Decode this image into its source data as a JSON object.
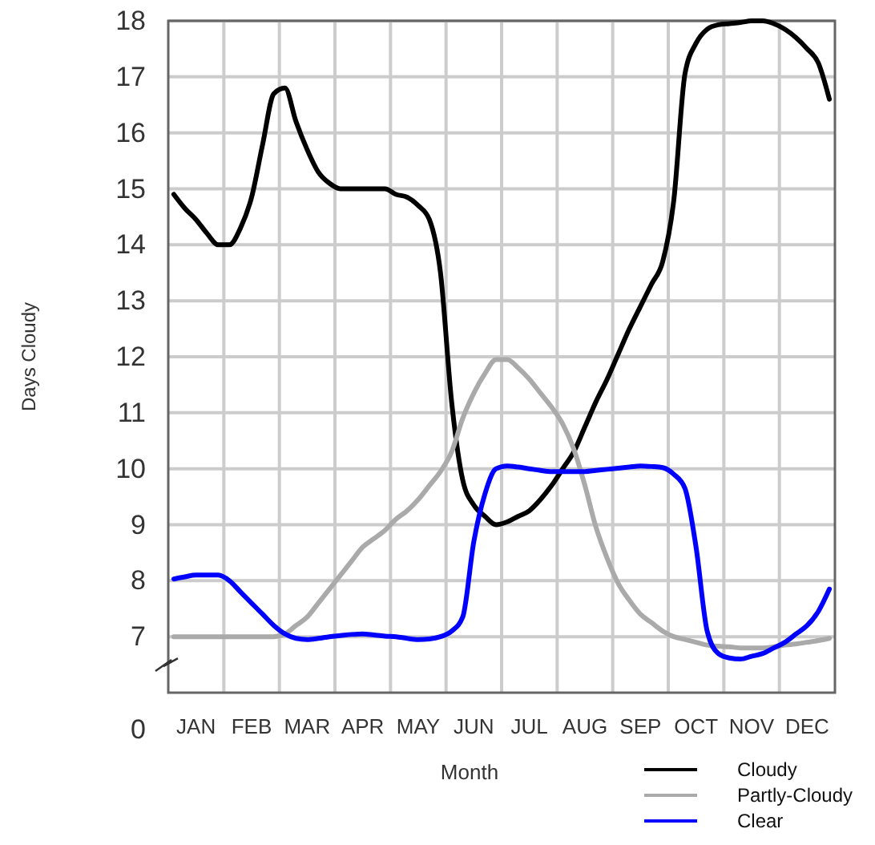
{
  "chart_data": {
    "type": "line",
    "xlabel": "Month",
    "ylabel": "Days Cloudy",
    "categories": [
      null,
      null,
      "JAN",
      null,
      null,
      null,
      null,
      "FEB",
      null,
      null,
      null,
      null,
      "MAR",
      null,
      null,
      null,
      null,
      "APR",
      null,
      null,
      null,
      null,
      "MAY",
      null,
      null,
      null,
      null,
      "JUN",
      null,
      null,
      null,
      null,
      "JUL",
      null,
      null,
      null,
      null,
      "AUG",
      null,
      null,
      null,
      null,
      "SEP",
      null,
      null,
      null,
      null,
      "OCT",
      null,
      null,
      null,
      null,
      "NOV",
      null,
      null,
      null,
      null,
      "DEC",
      null,
      null
    ],
    "ylim": [
      6,
      18
    ],
    "yticks": [
      7,
      8,
      9,
      10,
      11,
      12,
      13,
      14,
      15,
      16,
      17,
      18
    ],
    "annotations": [
      "0"
    ],
    "grid": true,
    "legend": "bottom right",
    "marker": "none",
    "line_style": "solid",
    "series": [
      {
        "name": "Cloudy",
        "color": "#000000",
        "values": [
          14.9,
          14.65,
          14.45,
          14.2,
          14.0,
          14.0,
          14.3,
          14.85,
          15.8,
          16.7,
          16.8,
          16.2,
          15.7,
          15.3,
          15.1,
          15.0,
          15.0,
          15.0,
          15.0,
          15.0,
          14.9,
          14.85,
          14.7,
          14.45,
          13.5,
          11.2,
          9.8,
          9.35,
          9.15,
          9.0,
          9.05,
          9.15,
          9.25,
          9.45,
          9.7,
          10.0,
          10.3,
          10.75,
          11.2,
          11.6,
          12.05,
          12.5,
          12.9,
          13.3,
          13.7,
          14.8,
          17.05,
          17.6,
          17.85,
          17.93,
          17.95,
          17.97,
          18.0,
          18.0,
          17.95,
          17.85,
          17.7,
          17.5,
          17.25,
          16.6
        ]
      },
      {
        "name": "Partly-Cloudy",
        "color": "#aaaaaa",
        "values": [
          7.0,
          7.0,
          7.0,
          7.0,
          7.0,
          7.0,
          7.0,
          7.0,
          7.0,
          7.0,
          7.05,
          7.2,
          7.35,
          7.6,
          7.85,
          8.1,
          8.35,
          8.6,
          8.75,
          8.9,
          9.1,
          9.25,
          9.45,
          9.7,
          9.95,
          10.3,
          10.9,
          11.35,
          11.7,
          11.95,
          11.95,
          11.8,
          11.6,
          11.35,
          11.1,
          10.8,
          10.35,
          9.7,
          8.95,
          8.4,
          7.95,
          7.65,
          7.4,
          7.25,
          7.1,
          7.0,
          6.95,
          6.9,
          6.85,
          6.83,
          6.82,
          6.8,
          6.8,
          6.8,
          6.82,
          6.85,
          6.87,
          6.9,
          6.93,
          6.97
        ]
      },
      {
        "name": "Clear",
        "color": "#0000ff",
        "values": [
          8.03,
          8.07,
          8.1,
          8.1,
          8.1,
          8.0,
          7.8,
          7.6,
          7.4,
          7.2,
          7.05,
          6.97,
          6.95,
          6.97,
          7.0,
          7.02,
          7.04,
          7.05,
          7.03,
          7.01,
          7.0,
          6.97,
          6.95,
          6.96,
          7.0,
          7.1,
          7.35,
          8.7,
          9.55,
          10.0,
          10.05,
          10.03,
          10.0,
          9.97,
          9.95,
          9.95,
          9.95,
          9.95,
          9.97,
          9.99,
          10.01,
          10.03,
          10.05,
          10.04,
          10.02,
          9.9,
          9.65,
          8.6,
          7.1,
          6.7,
          6.62,
          6.6,
          6.65,
          6.7,
          6.8,
          6.9,
          7.05,
          7.2,
          7.45,
          7.85
        ]
      }
    ]
  }
}
